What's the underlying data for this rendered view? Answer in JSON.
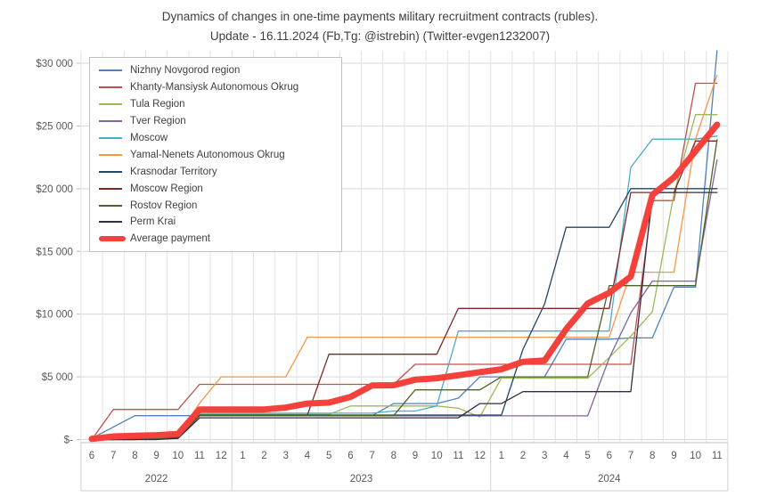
{
  "title": {
    "line1": "Dynamics of changes in one-time payments мilitary recruitment contracts (rubles).",
    "line2": "Update - 16.11.2024 (Fb,Tg: @istrebin) (Twitter-evgen1232007)"
  },
  "chart_data": {
    "type": "line",
    "x_categories": [
      "6",
      "7",
      "8",
      "9",
      "10",
      "11",
      "12",
      "1",
      "2",
      "3",
      "4",
      "5",
      "6",
      "7",
      "8",
      "9",
      "10",
      "11",
      "12",
      "1",
      "2",
      "3",
      "4",
      "5",
      "6",
      "7",
      "8",
      "9",
      "10",
      "11"
    ],
    "year_groups": [
      {
        "label": "2022",
        "start": 0,
        "end": 6
      },
      {
        "label": "2023",
        "start": 7,
        "end": 18
      },
      {
        "label": "2024",
        "start": 19,
        "end": 29
      }
    ],
    "y_tick_labels": [
      "$-",
      "$5 000",
      "$10 000",
      "$15 000",
      "$20 000",
      "$25 000",
      "$30 000"
    ],
    "y_ticks": [
      0,
      5000,
      10000,
      15000,
      20000,
      25000,
      30000
    ],
    "ylim": [
      0,
      30000
    ],
    "grid": true,
    "legend_position": "upper-left-inside",
    "axis_text_color": "#595959",
    "grid_color": "#d9d9d9",
    "series": [
      {
        "name": "Nizhny Novgorod region",
        "color": "#4f81bd",
        "width": 1.3,
        "values": [
          100,
          1000,
          1900,
          1900,
          1900,
          1900,
          1900,
          1900,
          1900,
          1900,
          1900,
          1900,
          1900,
          1900,
          2870,
          2870,
          2870,
          3300,
          5000,
          5000,
          5000,
          5000,
          8000,
          8000,
          8000,
          8100,
          8100,
          12150,
          12150,
          31000
        ]
      },
      {
        "name": "Khanty-Mansiysk Autonomous Okrug",
        "color": "#c0504d",
        "width": 1.3,
        "values": [
          0,
          2400,
          2400,
          2400,
          2400,
          4400,
          4400,
          4400,
          4400,
          4400,
          4400,
          4400,
          4400,
          4400,
          4400,
          6000,
          6000,
          6000,
          6000,
          6000,
          6000,
          6000,
          6000,
          6000,
          6000,
          6000,
          19050,
          19050,
          28400,
          28400
        ]
      },
      {
        "name": "Tula Region",
        "color": "#9bbb59",
        "width": 1.3,
        "values": [
          0,
          0,
          0,
          100,
          200,
          2000,
          2000,
          2000,
          2000,
          2000,
          2000,
          2000,
          2680,
          2680,
          2680,
          2680,
          2680,
          2500,
          1800,
          4890,
          4890,
          4890,
          4890,
          4890,
          6550,
          8250,
          10200,
          19600,
          25900,
          25900
        ]
      },
      {
        "name": "Tver Region",
        "color": "#8064a2",
        "width": 1.3,
        "values": [
          0,
          0,
          0,
          0,
          200,
          1890,
          1890,
          1890,
          1890,
          1890,
          1890,
          1890,
          1890,
          1890,
          1890,
          1890,
          1890,
          1890,
          1890,
          1890,
          1890,
          1890,
          1890,
          1890,
          6500,
          10100,
          12630,
          12630,
          12630,
          22300
        ]
      },
      {
        "name": "Moscow",
        "color": "#4bacc6",
        "width": 1.3,
        "values": [
          0,
          0,
          100,
          200,
          300,
          2100,
          2100,
          2100,
          2100,
          2100,
          2100,
          2100,
          2100,
          2100,
          2270,
          2270,
          2680,
          8650,
          8650,
          8650,
          8650,
          8650,
          8650,
          8650,
          8650,
          21700,
          23950,
          23950,
          23950,
          24200
        ]
      },
      {
        "name": "Yamal-Nenets Autonomous Okrug",
        "color": "#f79646",
        "width": 1.3,
        "values": [
          300,
          300,
          400,
          400,
          400,
          2900,
          5000,
          5000,
          5000,
          5000,
          8160,
          8160,
          8160,
          8160,
          8160,
          8160,
          8160,
          8160,
          8160,
          8160,
          8160,
          8160,
          8160,
          8160,
          8160,
          13340,
          13340,
          13340,
          23950,
          29050
        ]
      },
      {
        "name": "Krasnodar Territory",
        "color": "#1f4568",
        "width": 1.3,
        "values": [
          0,
          0,
          0,
          100,
          100,
          1950,
          1950,
          1950,
          1950,
          1950,
          1950,
          1950,
          1950,
          1950,
          1950,
          1950,
          1950,
          1950,
          1950,
          1950,
          7200,
          10800,
          16920,
          16920,
          16920,
          20000,
          20000,
          20000,
          20000,
          20000
        ]
      },
      {
        "name": "Moscow Region",
        "color": "#7b2927",
        "width": 1.3,
        "values": [
          0,
          0,
          100,
          100,
          200,
          1950,
          1950,
          1950,
          1950,
          1950,
          1950,
          6800,
          6800,
          6800,
          6800,
          6800,
          6800,
          10450,
          10450,
          10450,
          10450,
          10450,
          10450,
          10450,
          10450,
          19700,
          19700,
          19700,
          23800,
          23800
        ]
      },
      {
        "name": "Rostov Region",
        "color": "#4f6228",
        "width": 1.3,
        "values": [
          0,
          0,
          0,
          100,
          100,
          1900,
          1900,
          1900,
          1900,
          1900,
          1900,
          1900,
          1900,
          1900,
          1900,
          3960,
          3960,
          3960,
          3960,
          5000,
          5000,
          5000,
          5000,
          5000,
          12270,
          12270,
          12270,
          12270,
          12270,
          23900
        ]
      },
      {
        "name": "Perm Krai",
        "color": "#352b44",
        "width": 1.3,
        "values": [
          0,
          0,
          0,
          0,
          100,
          1730,
          1730,
          1730,
          1730,
          1730,
          1730,
          1730,
          1730,
          1730,
          1730,
          1730,
          1730,
          1730,
          2870,
          2870,
          3820,
          3820,
          3820,
          3820,
          3820,
          3820,
          19700,
          19700,
          19700,
          19700
        ]
      },
      {
        "name": "Average payment",
        "color": "#f5413b",
        "width": 7,
        "values": [
          50,
          250,
          300,
          350,
          450,
          2400,
          2400,
          2400,
          2400,
          2550,
          2870,
          2950,
          3400,
          4310,
          4330,
          4770,
          4890,
          5130,
          5370,
          5600,
          6200,
          6300,
          8800,
          10850,
          11700,
          13000,
          19500,
          20900,
          23000,
          25100
        ]
      }
    ]
  }
}
